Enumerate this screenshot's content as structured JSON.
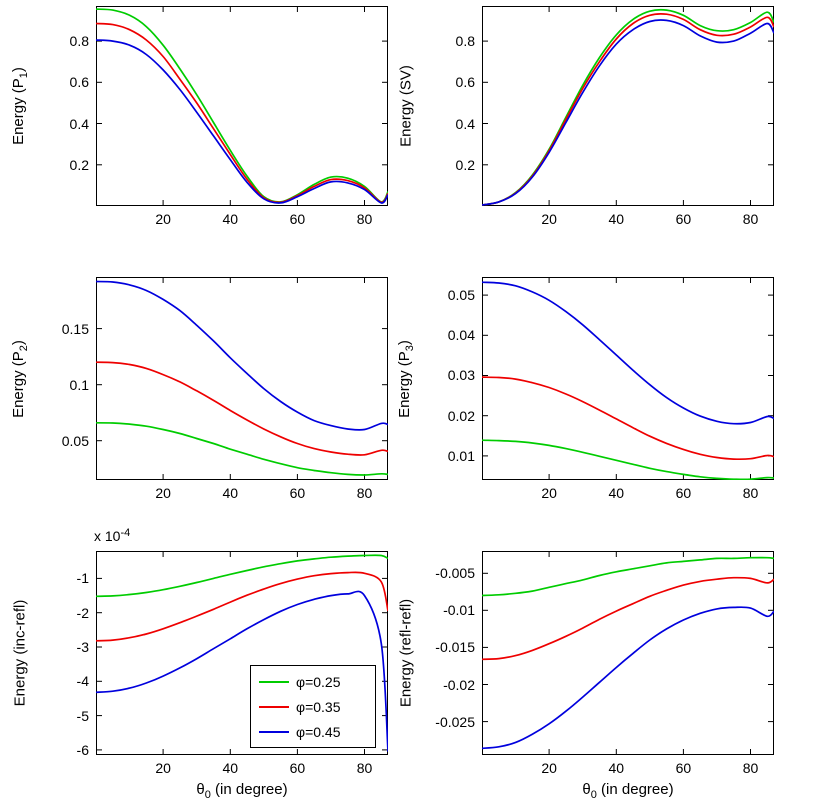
{
  "figure": {
    "background": "#ffffff"
  },
  "colors": {
    "green": "#00cc00",
    "red": "#ee0000",
    "blue": "#0000dd"
  },
  "legend": {
    "position": "bottom-right-inside",
    "entries": [
      {
        "label": "φ=0.25",
        "color": "#00cc00"
      },
      {
        "label": "φ=0.35",
        "color": "#ee0000"
      },
      {
        "label": "φ=0.45",
        "color": "#0000dd"
      }
    ]
  },
  "chart_data": [
    {
      "id": "p1",
      "type": "line",
      "title": "",
      "ylabel": {
        "text": "Energy (P",
        "sub": "1",
        "post": ")"
      },
      "xlabel": null,
      "xlim": [
        0,
        87
      ],
      "ylim": [
        0,
        0.97
      ],
      "xticks": [
        20,
        40,
        60,
        80
      ],
      "xticklabels": [
        "20",
        "40",
        "60",
        "80"
      ],
      "yticks": [
        0.2,
        0.4,
        0.6,
        0.8
      ],
      "yticklabels": [
        "0.2",
        "0.4",
        "0.6",
        "0.8"
      ],
      "x": [
        0,
        5,
        10,
        15,
        20,
        25,
        30,
        35,
        40,
        45,
        50,
        55,
        60,
        65,
        70,
        75,
        80,
        85,
        87
      ],
      "series": [
        {
          "name": "phi=0.25",
          "color": "#00cc00",
          "y": [
            0.955,
            0.95,
            0.925,
            0.87,
            0.78,
            0.665,
            0.54,
            0.405,
            0.27,
            0.145,
            0.045,
            0.02,
            0.055,
            0.105,
            0.14,
            0.135,
            0.095,
            0.02,
            0.07
          ]
        },
        {
          "name": "phi=0.35",
          "color": "#ee0000",
          "y": [
            0.885,
            0.88,
            0.855,
            0.805,
            0.725,
            0.615,
            0.5,
            0.375,
            0.25,
            0.13,
            0.04,
            0.018,
            0.05,
            0.095,
            0.128,
            0.123,
            0.088,
            0.018,
            0.062
          ]
        },
        {
          "name": "phi=0.45",
          "color": "#0000dd",
          "y": [
            0.805,
            0.8,
            0.78,
            0.735,
            0.66,
            0.565,
            0.455,
            0.34,
            0.225,
            0.115,
            0.035,
            0.015,
            0.045,
            0.085,
            0.117,
            0.112,
            0.08,
            0.015,
            0.055
          ]
        }
      ]
    },
    {
      "id": "sv",
      "type": "line",
      "title": "",
      "ylabel": {
        "text": "Energy (SV)",
        "sub": "",
        "post": ""
      },
      "xlabel": null,
      "xlim": [
        0,
        87
      ],
      "ylim": [
        0,
        0.97
      ],
      "xticks": [
        20,
        40,
        60,
        80
      ],
      "xticklabels": [
        "20",
        "40",
        "60",
        "80"
      ],
      "yticks": [
        0.2,
        0.4,
        0.6,
        0.8
      ],
      "yticklabels": [
        "0.2",
        "0.4",
        "0.6",
        "0.8"
      ],
      "x": [
        0,
        5,
        10,
        15,
        20,
        25,
        30,
        35,
        40,
        45,
        50,
        55,
        60,
        65,
        70,
        75,
        80,
        85,
        87
      ],
      "series": [
        {
          "name": "phi=0.25",
          "color": "#00cc00",
          "y": [
            0.005,
            0.02,
            0.065,
            0.15,
            0.275,
            0.43,
            0.585,
            0.72,
            0.83,
            0.905,
            0.945,
            0.95,
            0.925,
            0.875,
            0.85,
            0.855,
            0.89,
            0.94,
            0.89
          ]
        },
        {
          "name": "phi=0.35",
          "color": "#ee0000",
          "y": [
            0.005,
            0.02,
            0.063,
            0.145,
            0.268,
            0.42,
            0.57,
            0.7,
            0.81,
            0.885,
            0.925,
            0.93,
            0.905,
            0.855,
            0.828,
            0.833,
            0.868,
            0.915,
            0.868
          ]
        },
        {
          "name": "phi=0.45",
          "color": "#0000dd",
          "y": [
            0.005,
            0.02,
            0.06,
            0.14,
            0.26,
            0.405,
            0.55,
            0.68,
            0.785,
            0.855,
            0.895,
            0.9,
            0.875,
            0.825,
            0.795,
            0.8,
            0.838,
            0.885,
            0.838
          ]
        }
      ]
    },
    {
      "id": "p2",
      "type": "line",
      "title": "",
      "ylabel": {
        "text": "Energy (P",
        "sub": "2",
        "post": ")"
      },
      "xlabel": null,
      "xlim": [
        0,
        87
      ],
      "ylim": [
        0.015,
        0.196
      ],
      "xticks": [
        20,
        40,
        60,
        80
      ],
      "xticklabels": [
        "20",
        "40",
        "60",
        "80"
      ],
      "yticks": [
        0.05,
        0.1,
        0.15
      ],
      "yticklabels": [
        "0.05",
        "0.1",
        "0.15"
      ],
      "x": [
        0,
        5,
        10,
        15,
        20,
        25,
        30,
        35,
        40,
        45,
        50,
        55,
        60,
        65,
        70,
        75,
        80,
        85,
        87
      ],
      "series": [
        {
          "name": "phi=0.25",
          "color": "#00cc00",
          "y": [
            0.066,
            0.0658,
            0.0648,
            0.063,
            0.06,
            0.0565,
            0.052,
            0.0475,
            0.0425,
            0.038,
            0.0335,
            0.0295,
            0.026,
            0.0235,
            0.0215,
            0.02,
            0.0195,
            0.0205,
            0.02
          ]
        },
        {
          "name": "phi=0.35",
          "color": "#ee0000",
          "y": [
            0.12,
            0.1197,
            0.118,
            0.1145,
            0.109,
            0.1025,
            0.0945,
            0.086,
            0.077,
            0.0685,
            0.0605,
            0.0535,
            0.0475,
            0.043,
            0.04,
            0.038,
            0.0375,
            0.0415,
            0.0405
          ]
        },
        {
          "name": "phi=0.45",
          "color": "#0000dd",
          "y": [
            0.192,
            0.1915,
            0.189,
            0.184,
            0.176,
            0.166,
            0.153,
            0.139,
            0.124,
            0.11,
            0.0965,
            0.085,
            0.0755,
            0.068,
            0.0635,
            0.0605,
            0.06,
            0.0655,
            0.0645
          ]
        }
      ]
    },
    {
      "id": "p3",
      "type": "line",
      "title": "",
      "ylabel": {
        "text": "Energy (P",
        "sub": "3",
        "post": ")"
      },
      "xlabel": null,
      "xlim": [
        0,
        87
      ],
      "ylim": [
        0.004,
        0.0545
      ],
      "xticks": [
        20,
        40,
        60,
        80
      ],
      "xticklabels": [
        "20",
        "40",
        "60",
        "80"
      ],
      "yticks": [
        0.01,
        0.02,
        0.03,
        0.04,
        0.05
      ],
      "yticklabels": [
        "0.01",
        "0.02",
        "0.03",
        "0.04",
        "0.05"
      ],
      "x": [
        0,
        5,
        10,
        15,
        20,
        25,
        30,
        35,
        40,
        45,
        50,
        55,
        60,
        65,
        70,
        75,
        80,
        85,
        87
      ],
      "series": [
        {
          "name": "phi=0.25",
          "color": "#00cc00",
          "y": [
            0.0139,
            0.0138,
            0.0136,
            0.0132,
            0.0126,
            0.0118,
            0.0109,
            0.0099,
            0.0089,
            0.0079,
            0.0069,
            0.0061,
            0.0054,
            0.0048,
            0.0044,
            0.0042,
            0.0042,
            0.0046,
            0.0045
          ]
        },
        {
          "name": "phi=0.35",
          "color": "#ee0000",
          "y": [
            0.0296,
            0.0295,
            0.0291,
            0.0282,
            0.027,
            0.0254,
            0.0235,
            0.0214,
            0.0192,
            0.017,
            0.0149,
            0.0131,
            0.0116,
            0.0104,
            0.0096,
            0.0092,
            0.0093,
            0.0101,
            0.0098
          ]
        },
        {
          "name": "phi=0.45",
          "color": "#0000dd",
          "y": [
            0.0532,
            0.053,
            0.0523,
            0.0508,
            0.0487,
            0.0459,
            0.0426,
            0.0389,
            0.0351,
            0.0313,
            0.0277,
            0.0245,
            0.0219,
            0.0199,
            0.0186,
            0.018,
            0.0183,
            0.0198,
            0.0193
          ]
        }
      ]
    },
    {
      "id": "increfl",
      "type": "line",
      "title": "",
      "ylabel": {
        "text": "Energy (inc-refl)",
        "sub": "",
        "post": ""
      },
      "xlabel": {
        "text": "θ",
        "sub": "0",
        "post": " (in degree)"
      },
      "offset_label": {
        "text": "x 10",
        "sup": "-4"
      },
      "show_legend": true,
      "xlim": [
        0,
        87
      ],
      "ylim": [
        -6.15,
        -0.2
      ],
      "xticks": [
        20,
        40,
        60,
        80
      ],
      "xticklabels": [
        "20",
        "40",
        "60",
        "80"
      ],
      "yticks": [
        -6,
        -5,
        -4,
        -3,
        -2,
        -1
      ],
      "yticklabels": [
        "-6",
        "-5",
        "-4",
        "-3",
        "-2",
        "-1"
      ],
      "x": [
        0,
        5,
        10,
        15,
        20,
        25,
        30,
        35,
        40,
        45,
        50,
        55,
        60,
        65,
        70,
        75,
        80,
        85,
        87
      ],
      "series": [
        {
          "name": "phi=0.25",
          "color": "#00cc00",
          "y": [
            -1.52,
            -1.51,
            -1.47,
            -1.41,
            -1.33,
            -1.23,
            -1.12,
            -1.0,
            -0.88,
            -0.77,
            -0.66,
            -0.57,
            -0.49,
            -0.43,
            -0.38,
            -0.35,
            -0.33,
            -0.33,
            -0.42
          ]
        },
        {
          "name": "phi=0.35",
          "color": "#ee0000",
          "y": [
            -2.82,
            -2.8,
            -2.73,
            -2.62,
            -2.47,
            -2.29,
            -2.1,
            -1.9,
            -1.69,
            -1.49,
            -1.31,
            -1.15,
            -1.02,
            -0.92,
            -0.86,
            -0.83,
            -0.85,
            -1.1,
            -1.95
          ]
        },
        {
          "name": "phi=0.45",
          "color": "#0000dd",
          "y": [
            -4.32,
            -4.29,
            -4.2,
            -4.05,
            -3.85,
            -3.61,
            -3.34,
            -3.05,
            -2.76,
            -2.47,
            -2.2,
            -1.96,
            -1.76,
            -1.61,
            -1.5,
            -1.45,
            -1.5,
            -2.9,
            -6.05
          ]
        }
      ]
    },
    {
      "id": "reflrefl",
      "type": "line",
      "title": "",
      "ylabel": {
        "text": "Energy (refl-refl)",
        "sub": "",
        "post": ""
      },
      "xlabel": {
        "text": "θ",
        "sub": "0",
        "post": " (in degree)"
      },
      "xlim": [
        0,
        87
      ],
      "ylim": [
        -0.0295,
        -0.002
      ],
      "xticks": [
        20,
        40,
        60,
        80
      ],
      "xticklabels": [
        "20",
        "40",
        "60",
        "80"
      ],
      "yticks": [
        -0.025,
        -0.02,
        -0.015,
        -0.01,
        -0.005
      ],
      "yticklabels": [
        "-0.025",
        "-0.02",
        "-0.015",
        "-0.01",
        "-0.005"
      ],
      "x": [
        0,
        5,
        10,
        15,
        20,
        25,
        30,
        35,
        40,
        45,
        50,
        55,
        60,
        65,
        70,
        75,
        80,
        85,
        87
      ],
      "series": [
        {
          "name": "phi=0.25",
          "color": "#00cc00",
          "y": [
            -0.008,
            -0.0079,
            -0.0077,
            -0.0074,
            -0.0069,
            -0.0064,
            -0.0059,
            -0.0053,
            -0.0048,
            -0.0044,
            -0.004,
            -0.0036,
            -0.0034,
            -0.0032,
            -0.003,
            -0.003,
            -0.0029,
            -0.0029,
            -0.003
          ]
        },
        {
          "name": "phi=0.35",
          "color": "#ee0000",
          "y": [
            -0.0166,
            -0.0165,
            -0.0161,
            -0.0154,
            -0.0145,
            -0.0135,
            -0.0124,
            -0.0112,
            -0.0101,
            -0.0091,
            -0.0081,
            -0.0073,
            -0.0066,
            -0.0061,
            -0.0058,
            -0.0056,
            -0.0057,
            -0.0063,
            -0.0058
          ]
        },
        {
          "name": "phi=0.45",
          "color": "#0000dd",
          "y": [
            -0.0286,
            -0.0284,
            -0.0278,
            -0.0267,
            -0.0253,
            -0.0236,
            -0.0217,
            -0.0197,
            -0.0177,
            -0.0158,
            -0.014,
            -0.0125,
            -0.0113,
            -0.0104,
            -0.0098,
            -0.0096,
            -0.0097,
            -0.0108,
            -0.0101
          ]
        }
      ]
    }
  ]
}
